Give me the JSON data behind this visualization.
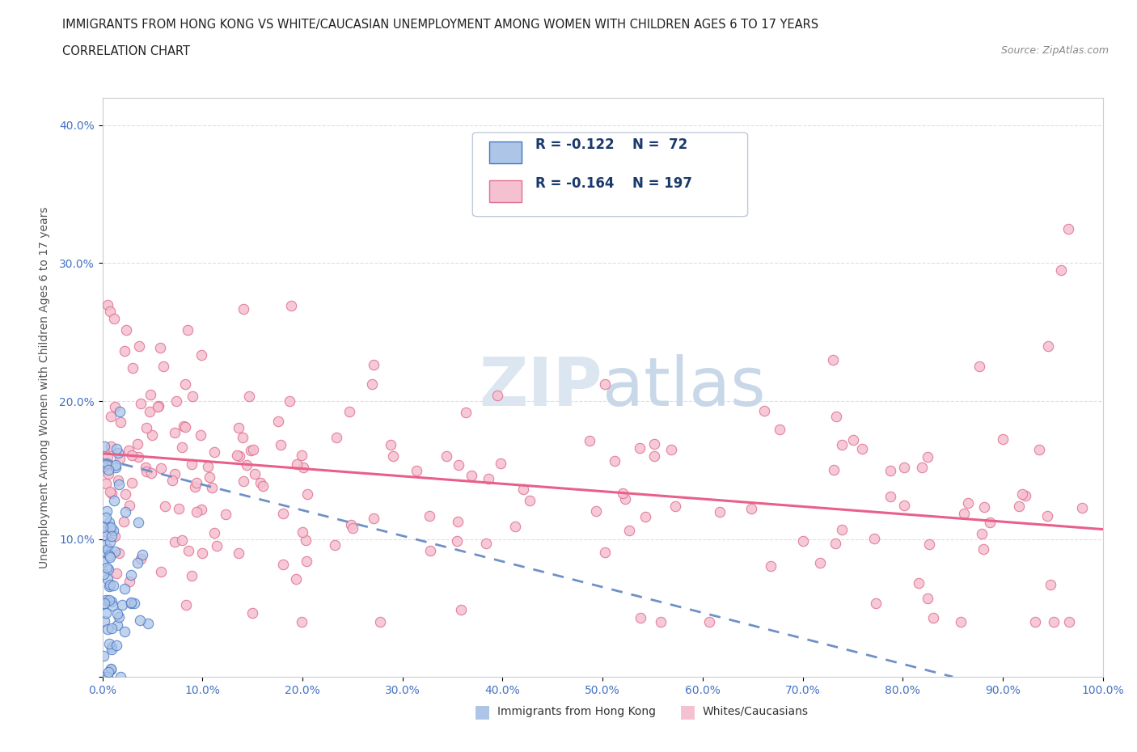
{
  "title_line1": "IMMIGRANTS FROM HONG KONG VS WHITE/CAUCASIAN UNEMPLOYMENT AMONG WOMEN WITH CHILDREN AGES 6 TO 17 YEARS",
  "title_line2": "CORRELATION CHART",
  "source_text": "Source: ZipAtlas.com",
  "ylabel": "Unemployment Among Women with Children Ages 6 to 17 years",
  "xlim": [
    0.0,
    1.0
  ],
  "ylim": [
    0.0,
    0.42
  ],
  "xticklabels": [
    "0.0%",
    "10.0%",
    "20.0%",
    "30.0%",
    "40.0%",
    "50.0%",
    "60.0%",
    "70.0%",
    "80.0%",
    "90.0%",
    "100.0%"
  ],
  "yticklabels": [
    "",
    "10.0%",
    "20.0%",
    "30.0%",
    "40.0%"
  ],
  "hk_fill_color": "#adc6e8",
  "hk_edge_color": "#4472c4",
  "white_fill_color": "#f5c0d0",
  "white_edge_color": "#e07090",
  "hk_trend_color": "#7090c8",
  "white_trend_color": "#e8608a",
  "watermark_color": "#dce6f0",
  "r_hk": -0.122,
  "n_hk": 72,
  "r_white": -0.164,
  "n_white": 197,
  "grid_color": "#d8d8d8",
  "bg_color": "#ffffff",
  "title_color": "#222222",
  "axis_color": "#555555",
  "tick_color": "#4472c4",
  "legend_text_color": "#1a3a6b",
  "source_color": "#888888"
}
